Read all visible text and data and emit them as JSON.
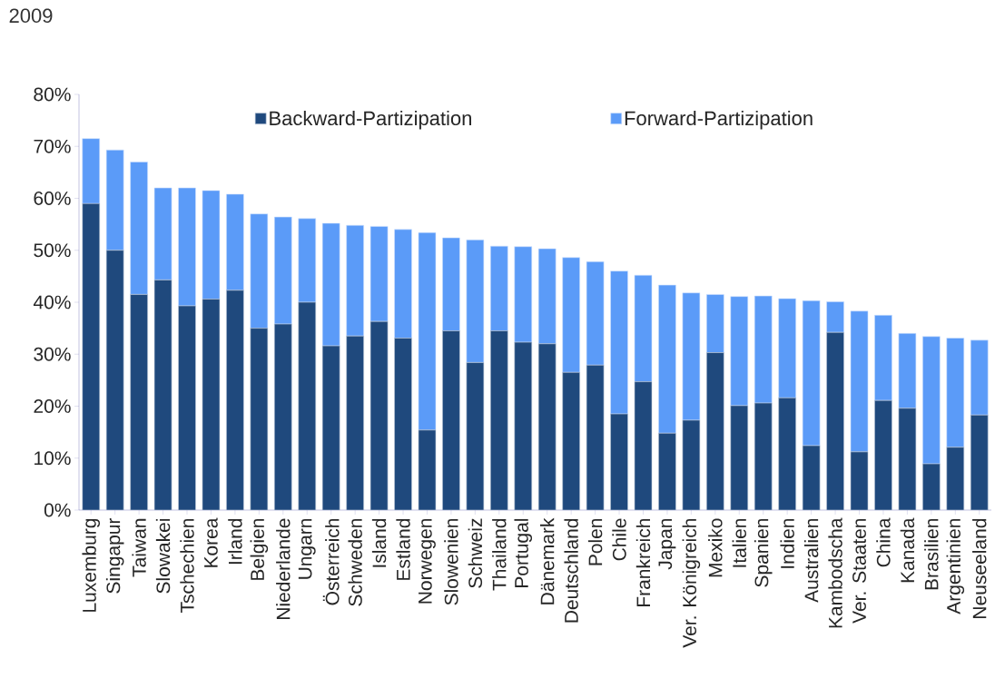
{
  "chart_data": {
    "type": "bar",
    "stacked": true,
    "title": "2009",
    "categories": [
      "Luxemburg",
      "Singapur",
      "Taiwan",
      "Slowakei",
      "Tschechien",
      "Korea",
      "Irland",
      "Belgien",
      "Niederlande",
      "Ungarn",
      "Österreich",
      "Schweden",
      "Island",
      "Estland",
      "Norwegen",
      "Slowenien",
      "Schweiz",
      "Thailand",
      "Portugal",
      "Dänemark",
      "Deutschland",
      "Polen",
      "Chile",
      "Frankreich",
      "Japan",
      "Ver. Königreich",
      "Mexiko",
      "Italien",
      "Spanien",
      "Indien",
      "Australien",
      "Kambodscha",
      "Ver. Staaten",
      "China",
      "Kanada",
      "Brasilien",
      "Argentinien",
      "Neuseeland"
    ],
    "series": [
      {
        "name": "Backward-Partizipation",
        "color": "#1f497d",
        "values": [
          59.0,
          50.0,
          41.5,
          44.3,
          39.3,
          40.6,
          42.3,
          35.0,
          35.8,
          40.0,
          31.6,
          33.5,
          36.3,
          33.1,
          15.4,
          34.5,
          28.4,
          34.5,
          32.3,
          32.0,
          26.5,
          27.9,
          18.5,
          24.7,
          14.8,
          17.3,
          30.3,
          20.1,
          20.6,
          21.6,
          12.4,
          34.2,
          11.2,
          21.1,
          19.6,
          8.9,
          12.1,
          18.3
        ]
      },
      {
        "name": "Forward-Partizipation",
        "color": "#5b9bf8",
        "values": [
          12.5,
          19.3,
          25.5,
          17.7,
          22.7,
          20.9,
          18.5,
          22.0,
          20.6,
          16.1,
          23.6,
          21.3,
          18.3,
          20.9,
          38.0,
          17.9,
          23.6,
          16.3,
          18.4,
          18.3,
          22.1,
          19.9,
          27.5,
          20.5,
          28.5,
          24.5,
          11.2,
          21.0,
          20.6,
          19.1,
          27.9,
          5.9,
          27.1,
          16.4,
          14.4,
          24.5,
          21.0,
          14.4
        ]
      }
    ],
    "ylim": [
      0,
      80
    ],
    "yticks": [
      {
        "value": 0,
        "label": "0%"
      },
      {
        "value": 10,
        "label": "10%"
      },
      {
        "value": 20,
        "label": "20%"
      },
      {
        "value": 30,
        "label": "30%"
      },
      {
        "value": 40,
        "label": "40%"
      },
      {
        "value": 50,
        "label": "50%"
      },
      {
        "value": 60,
        "label": "60%"
      },
      {
        "value": 70,
        "label": "70%"
      },
      {
        "value": 80,
        "label": "80%"
      }
    ],
    "legend": "top",
    "grid": false
  }
}
